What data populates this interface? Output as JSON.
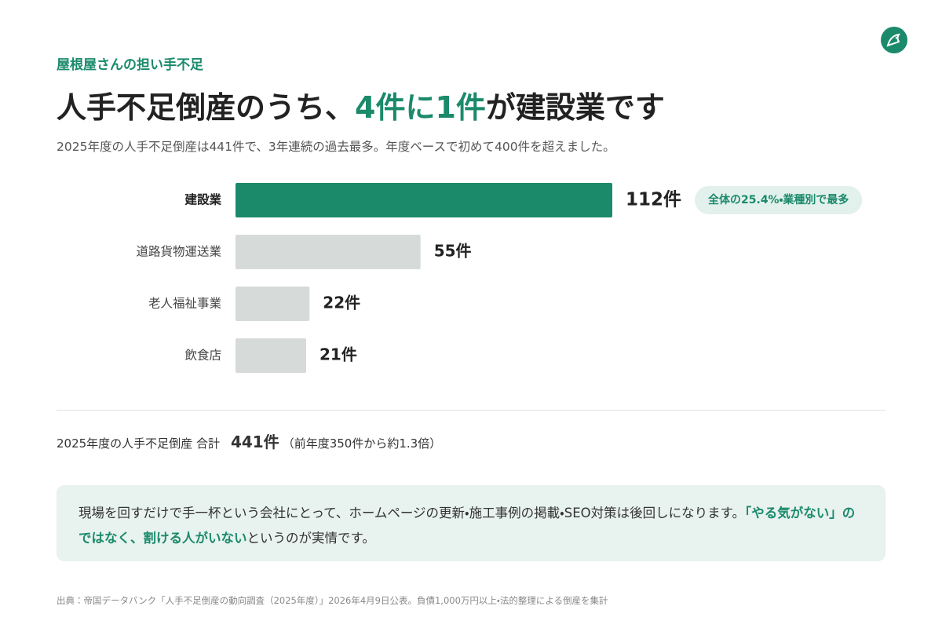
{
  "header": {
    "eyebrow": "屋根屋さんの担い手不足",
    "title": {
      "before": "人手不足倒産のうち、",
      "highlight": "4件に1件",
      "after": "が建設業です"
    },
    "subtitle": "2025年度の人手不足倒産は441件で、3年連続の過去最多。年度ベースで初めて400件を超えました。"
  },
  "chart_data": {
    "type": "bar",
    "orientation": "horizontal",
    "categories": [
      "建設業",
      "道路貨物運送業",
      "老人福祉事業",
      "飲食店"
    ],
    "values": [
      112,
      55,
      22,
      21
    ],
    "value_labels": [
      "112件",
      "55件",
      "22件",
      "21件"
    ],
    "colors": [
      "#1b8a6b",
      "#d6dbda",
      "#d6dbda",
      "#d6dbda"
    ],
    "annotation": "全体の25.4%・業種別で最多"
  },
  "total": {
    "label": "2025年度の人手不足倒産 合計",
    "value": "441件",
    "note": "（前年度350件から約1.3倍）"
  },
  "callout": {
    "before": "現場を回すだけで手一杯という会社にとって、ホームページの更新・施工事例の掲載・SEO対策は後回しになります。",
    "highlight": "「やる気がない」のではなく、割ける人がいない",
    "after": "というのが実情です。"
  },
  "source": "出典：帝国データバンク「人手不足倒産の動向調査（2025年度）」2026年4月9日公表。負債1,000万円以上・法的整理による倒産を集計"
}
